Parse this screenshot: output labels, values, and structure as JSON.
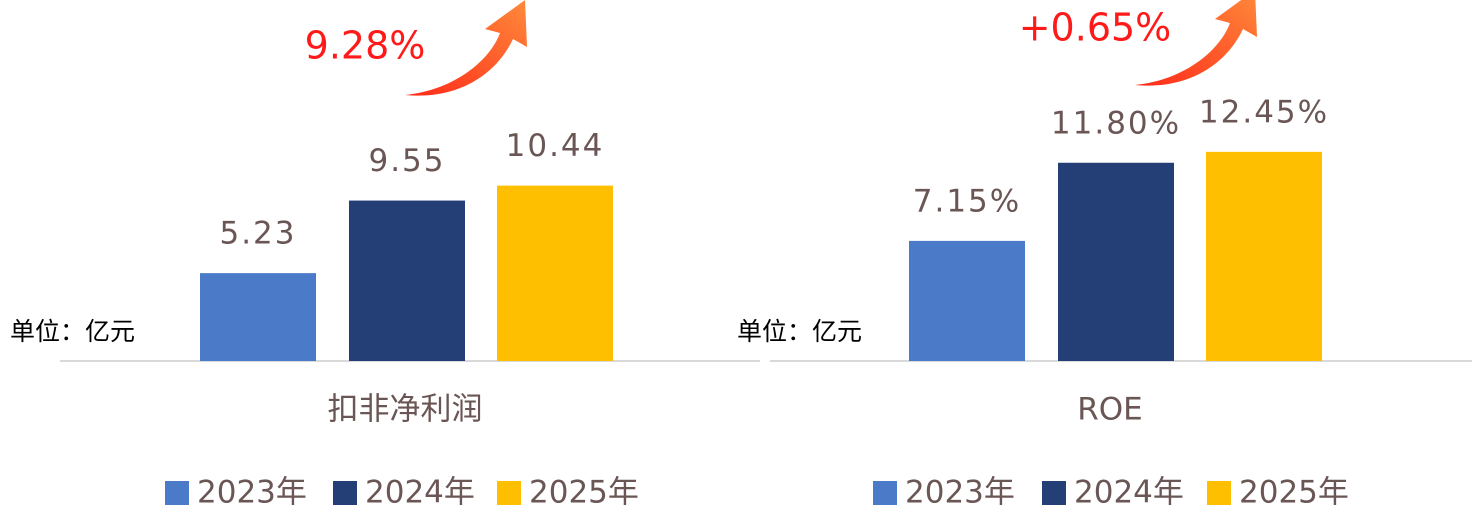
{
  "chart_data": [
    {
      "type": "bar",
      "x_label": "扣非净利润",
      "unit_note": "单位：亿元",
      "growth_label": "9.28%",
      "categories": [
        "2023年",
        "2024年",
        "2025年"
      ],
      "values": [
        5.23,
        9.55,
        10.44
      ],
      "colors": [
        "#4a7ac8",
        "#243f75",
        "#fdbf00"
      ]
    },
    {
      "type": "bar",
      "x_label": "ROE",
      "unit_note": "单位：亿元",
      "growth_label": "+0.65%",
      "categories": [
        "2023年",
        "2024年",
        "2025年"
      ],
      "values": [
        7.15,
        11.8,
        12.45
      ],
      "value_labels": [
        "7.15%",
        "11.80%",
        "12.45%"
      ],
      "colors": [
        "#4a7ac8",
        "#243f75",
        "#fdbf00"
      ]
    }
  ]
}
